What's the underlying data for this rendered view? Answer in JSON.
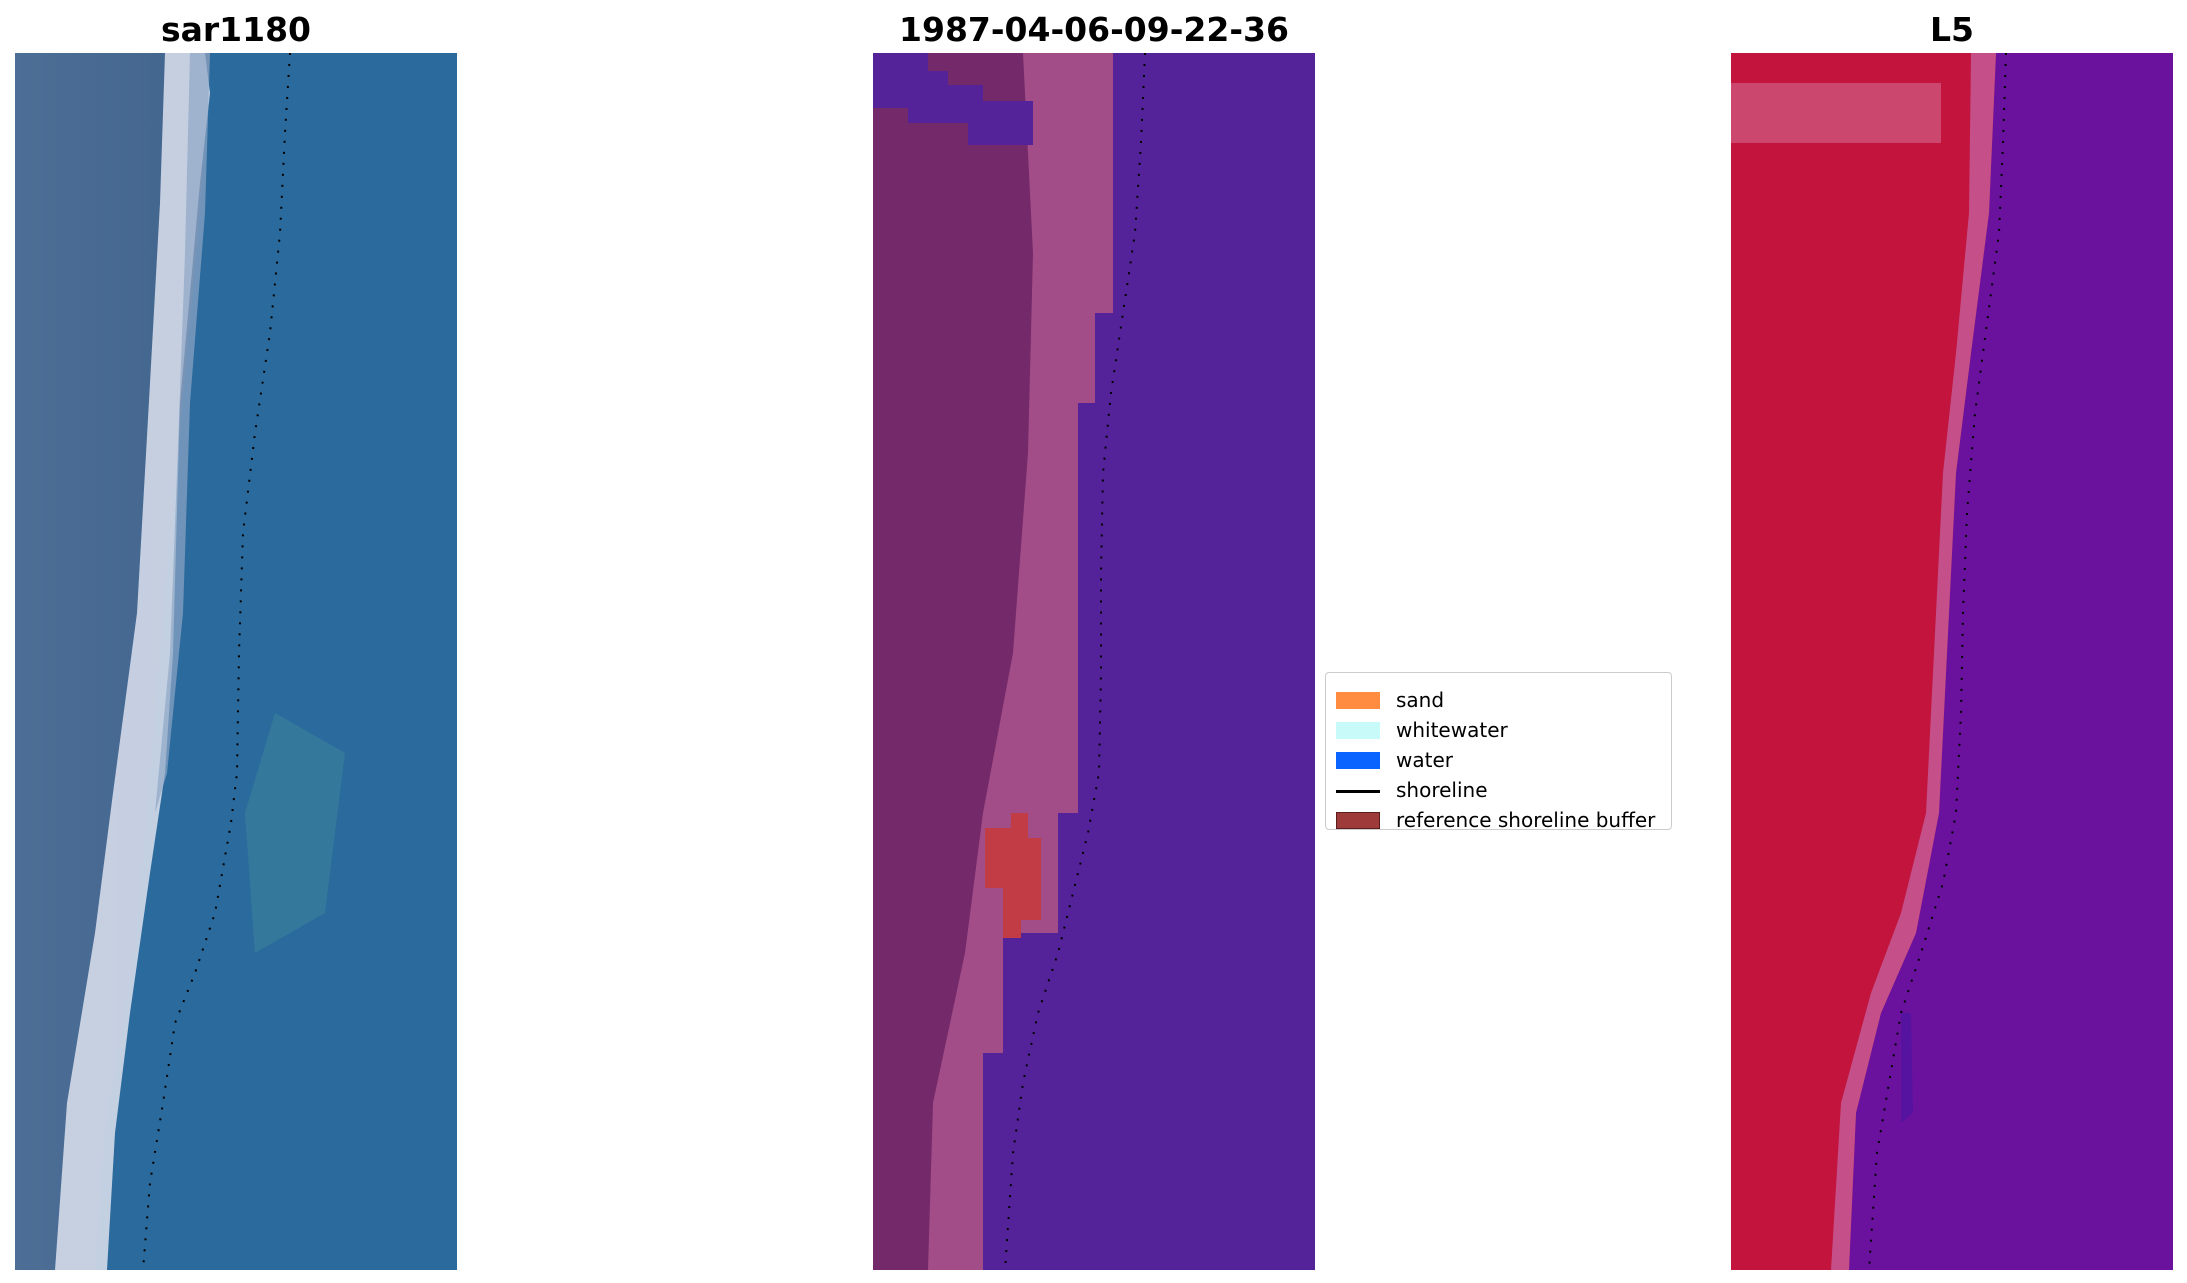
{
  "panels": [
    {
      "title": "sar1180",
      "image": "rgb-satellite-image"
    },
    {
      "title": "1987-04-06-09-22-36",
      "image": "classified-image"
    },
    {
      "title": "L5",
      "image": "mndwi-index-image"
    }
  ],
  "legend": {
    "items": [
      {
        "label": "sand",
        "color": "#ff8c40",
        "kind": "patch"
      },
      {
        "label": "whitewater",
        "color": "#c8fafa",
        "kind": "patch"
      },
      {
        "label": "water",
        "color": "#0a64ff",
        "kind": "patch"
      },
      {
        "label": "shoreline",
        "color": "#000000",
        "kind": "line"
      },
      {
        "label": "reference shoreline buffer",
        "color": "#9e3a3a",
        "kind": "patch"
      }
    ]
  },
  "colors": {
    "rgb_water": "#2b6a9c",
    "classified_water": "#552399",
    "index_land": "#c2143c",
    "index_water": "#6a129e"
  }
}
